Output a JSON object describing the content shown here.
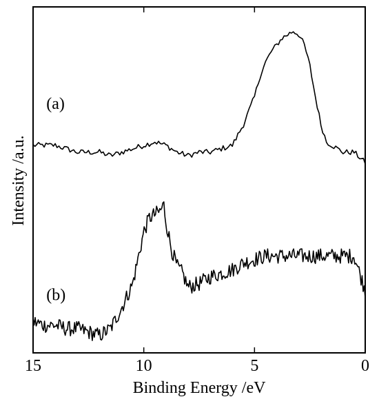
{
  "chart_data": {
    "type": "line",
    "title": "",
    "xlabel": "Binding Energy /eV",
    "ylabel": "Intensity /a.u.",
    "xlim": [
      15,
      0
    ],
    "ylim": [
      0,
      1
    ],
    "x_reversed": true,
    "xticks": [
      15,
      10,
      5,
      0
    ],
    "xtick_labels": [
      "15",
      "10",
      "5",
      "0"
    ],
    "y_tick_labels_shown": false,
    "grid": false,
    "legend": "none",
    "line_color": "#000000",
    "annotations": [
      {
        "text": "(a)",
        "x": 14.4,
        "y": 0.705
      },
      {
        "text": "(b)",
        "x": 14.4,
        "y": 0.152
      }
    ],
    "series": [
      {
        "label": "(a)",
        "x": [
          15.0,
          14.5,
          14.0,
          13.5,
          13.0,
          12.5,
          12.0,
          11.5,
          11.0,
          10.5,
          10.0,
          9.5,
          9.0,
          8.5,
          8.0,
          7.5,
          7.0,
          6.5,
          6.0,
          5.5,
          5.0,
          4.75,
          4.5,
          4.25,
          4.0,
          3.75,
          3.5,
          3.25,
          3.0,
          2.75,
          2.5,
          2.25,
          2.0,
          1.75,
          1.5,
          1.0,
          0.5,
          0.0
        ],
        "y": [
          0.6,
          0.6,
          0.6,
          0.59,
          0.58,
          0.58,
          0.58,
          0.57,
          0.58,
          0.59,
          0.6,
          0.61,
          0.6,
          0.58,
          0.57,
          0.58,
          0.58,
          0.59,
          0.6,
          0.66,
          0.74,
          0.8,
          0.84,
          0.87,
          0.89,
          0.91,
          0.92,
          0.93,
          0.92,
          0.89,
          0.83,
          0.74,
          0.66,
          0.61,
          0.6,
          0.58,
          0.58,
          0.55
        ]
      },
      {
        "label": "(b)",
        "x": [
          15.0,
          14.5,
          14.0,
          13.5,
          13.0,
          12.5,
          12.0,
          11.5,
          11.0,
          10.5,
          10.0,
          9.75,
          9.5,
          9.25,
          9.1,
          9.0,
          8.75,
          8.5,
          8.25,
          8.0,
          7.5,
          7.0,
          6.5,
          6.0,
          5.5,
          5.0,
          4.5,
          4.0,
          3.5,
          3.0,
          2.5,
          2.0,
          1.5,
          1.0,
          0.5,
          0.0
        ],
        "y": [
          0.09,
          0.08,
          0.08,
          0.07,
          0.07,
          0.06,
          0.05,
          0.07,
          0.13,
          0.2,
          0.35,
          0.39,
          0.4,
          0.41,
          0.43,
          0.38,
          0.3,
          0.25,
          0.23,
          0.19,
          0.2,
          0.22,
          0.23,
          0.24,
          0.26,
          0.27,
          0.28,
          0.28,
          0.28,
          0.28,
          0.28,
          0.28,
          0.28,
          0.28,
          0.28,
          0.18
        ]
      }
    ]
  }
}
